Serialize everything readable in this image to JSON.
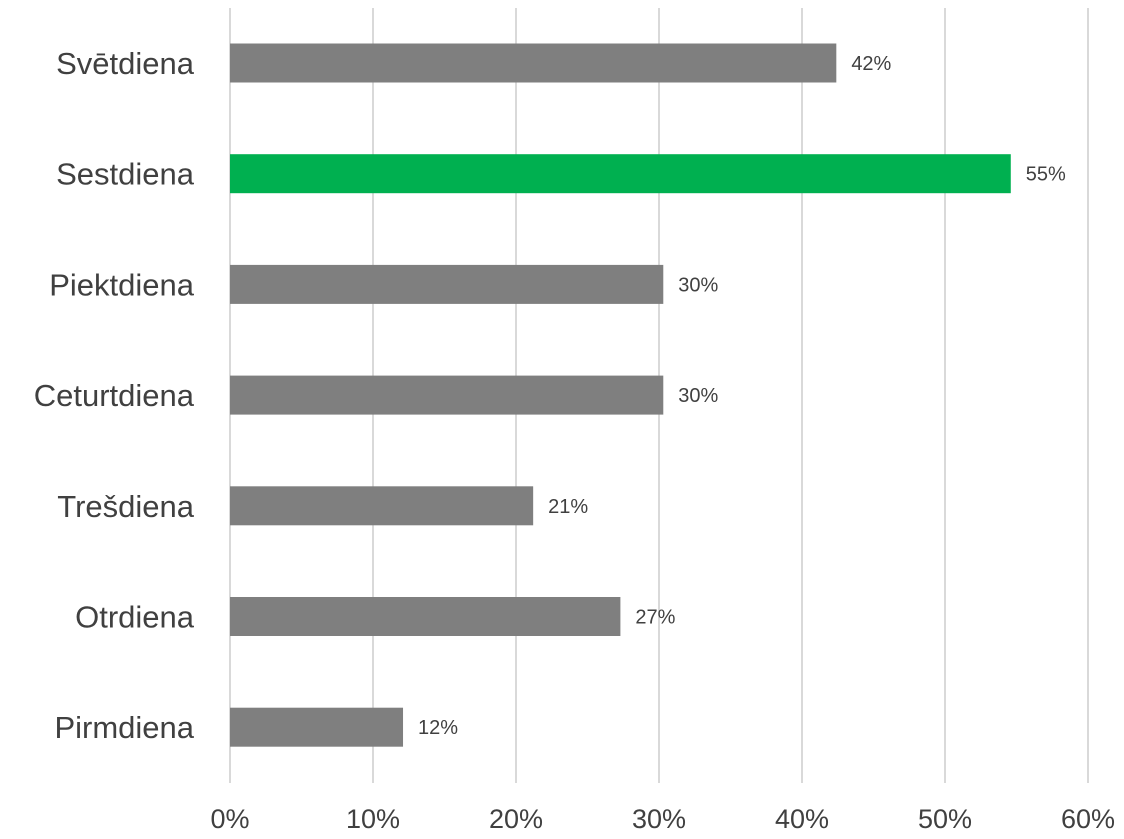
{
  "chart_data": {
    "type": "bar",
    "orientation": "horizontal",
    "categories": [
      "Svētdiena",
      "Sestdiena",
      "Piektdiena",
      "Ceturtdiena",
      "Trešdiena",
      "Otrdiena",
      "Pirmdiena"
    ],
    "values": [
      42.4,
      54.6,
      30.3,
      30.3,
      21.2,
      27.3,
      12.1
    ],
    "data_labels": [
      "42%",
      "55%",
      "30%",
      "30%",
      "21%",
      "27%",
      "12%"
    ],
    "xlim": [
      0,
      60
    ],
    "x_ticks": [
      0,
      10,
      20,
      30,
      40,
      50,
      60
    ],
    "x_tick_labels": [
      "0%",
      "10%",
      "20%",
      "30%",
      "40%",
      "50%",
      "60%"
    ],
    "grid": "vertical",
    "legend": "none",
    "title": "",
    "xlabel": "",
    "ylabel": "",
    "colors": {
      "default": "#7f7f7f",
      "highlight": "#00b050",
      "highlight_category": "Sestdiena"
    }
  }
}
